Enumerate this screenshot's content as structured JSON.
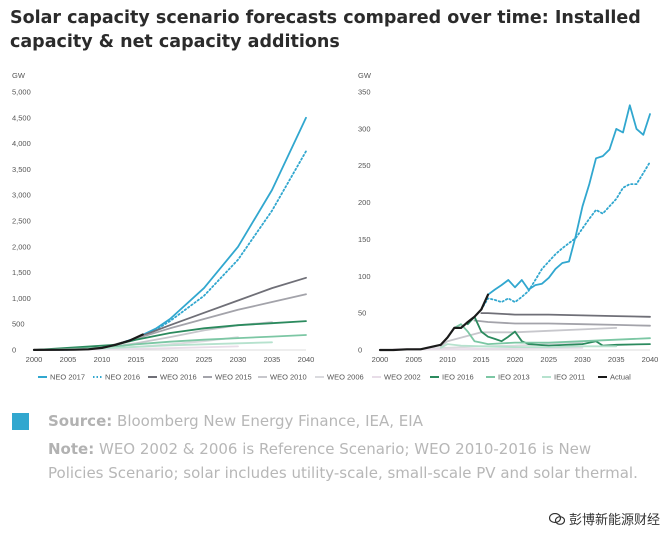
{
  "title": "Solar capacity scenario forecasts compared over time: Installed capacity & net capacity additions",
  "source_label": "Source:",
  "source_text": "Bloomberg New Energy Finance, IEA, EIA",
  "note_label": "Note:",
  "note_text": "WEO 2002 & 2006 is Reference Scenario; WEO 2010-2016 is New Policies Scenario; solar includes utility-scale, small-scale PV and solar thermal.",
  "watermark": "彭博新能源财经",
  "accent_color": "#31a7cf",
  "chart_data": [
    {
      "type": "line",
      "ylabel": "GW",
      "xlim": [
        2000,
        2040
      ],
      "ylim": [
        0,
        5000
      ],
      "xticks": [
        "2000",
        "2005",
        "2010",
        "2015",
        "2020",
        "2025",
        "2030",
        "2035",
        "2040"
      ],
      "yticks": [
        "0",
        "500",
        "1,000",
        "1,500",
        "2,000",
        "2,500",
        "3,000",
        "3,500",
        "4,000",
        "4,500",
        "5,000"
      ],
      "series": [
        {
          "name": "NEO 2017",
          "color": "#31a7cf",
          "dash": "solid",
          "x": [
            2000,
            2005,
            2010,
            2012,
            2015,
            2018,
            2020,
            2025,
            2030,
            2035,
            2040
          ],
          "values": [
            0,
            5,
            40,
            100,
            230,
            420,
            600,
            1200,
            2000,
            3100,
            4500
          ]
        },
        {
          "name": "NEO 2016",
          "color": "#31a7cf",
          "dash": "dotted",
          "x": [
            2000,
            2005,
            2010,
            2012,
            2015,
            2018,
            2020,
            2025,
            2030,
            2035,
            2040
          ],
          "values": [
            0,
            5,
            40,
            100,
            230,
            400,
            560,
            1050,
            1750,
            2700,
            3850
          ]
        },
        {
          "name": "WEO 2016",
          "color": "#6f6f77",
          "dash": "solid",
          "x": [
            2000,
            2010,
            2014,
            2020,
            2025,
            2030,
            2035,
            2040
          ],
          "values": [
            0,
            40,
            180,
            480,
            720,
            960,
            1200,
            1400
          ]
        },
        {
          "name": "WEO 2015",
          "color": "#a3a3aa",
          "dash": "solid",
          "x": [
            2000,
            2010,
            2014,
            2020,
            2025,
            2030,
            2035,
            2040
          ],
          "values": [
            0,
            40,
            180,
            420,
            600,
            780,
            930,
            1080
          ]
        },
        {
          "name": "WEO 2010",
          "color": "#c7c7cc",
          "dash": "solid",
          "x": [
            2000,
            2008,
            2010,
            2015,
            2020,
            2025,
            2030,
            2035
          ],
          "values": [
            0,
            15,
            40,
            130,
            250,
            380,
            480,
            540
          ]
        },
        {
          "name": "WEO 2006",
          "color": "#dadade",
          "dash": "solid",
          "x": [
            2000,
            2005,
            2010,
            2015,
            2020,
            2025,
            2030
          ],
          "values": [
            0,
            5,
            25,
            60,
            110,
            170,
            250
          ]
        },
        {
          "name": "WEO 2002",
          "color": "#e8dde8",
          "dash": "solid",
          "x": [
            2000,
            2010,
            2020,
            2030
          ],
          "values": [
            0,
            10,
            35,
            70
          ]
        },
        {
          "name": "IEO 2016",
          "color": "#2b8a5e",
          "dash": "solid",
          "x": [
            2000,
            2012,
            2015,
            2020,
            2025,
            2030,
            2035,
            2040
          ],
          "values": [
            0,
            100,
            200,
            330,
            420,
            480,
            520,
            560
          ]
        },
        {
          "name": "IEO 2013",
          "color": "#7cc7a4",
          "dash": "solid",
          "x": [
            2000,
            2010,
            2015,
            2020,
            2025,
            2030,
            2035,
            2040
          ],
          "values": [
            0,
            40,
            110,
            160,
            200,
            230,
            260,
            290
          ]
        },
        {
          "name": "IEO 2011",
          "color": "#b6e2ce",
          "dash": "solid",
          "x": [
            2000,
            2010,
            2015,
            2020,
            2025,
            2030,
            2035
          ],
          "values": [
            0,
            30,
            60,
            90,
            110,
            130,
            150
          ]
        },
        {
          "name": "Actual",
          "color": "#1a1a1a",
          "dash": "solid",
          "x": [
            2000,
            2004,
            2006,
            2008,
            2010,
            2012,
            2014,
            2016
          ],
          "values": [
            1,
            3,
            6,
            14,
            40,
            100,
            180,
            300
          ]
        }
      ]
    },
    {
      "type": "line",
      "ylabel": "GW",
      "xlim": [
        2000,
        2040
      ],
      "ylim": [
        0,
        350
      ],
      "xticks": [
        "2000",
        "2005",
        "2010",
        "2015",
        "2020",
        "2025",
        "2030",
        "2035",
        "2040"
      ],
      "yticks": [
        "0",
        "50",
        "100",
        "150",
        "200",
        "250",
        "300",
        "350"
      ],
      "series": [
        {
          "name": "NEO 2017",
          "color": "#31a7cf",
          "dash": "solid",
          "x": [
            2015,
            2016,
            2017,
            2018,
            2019,
            2020,
            2021,
            2022,
            2023,
            2024,
            2025,
            2026,
            2027,
            2028,
            2029,
            2030,
            2031,
            2032,
            2033,
            2034,
            2035,
            2036,
            2037,
            2038,
            2039,
            2040
          ],
          "values": [
            55,
            75,
            82,
            88,
            95,
            85,
            95,
            82,
            88,
            90,
            98,
            110,
            118,
            120,
            155,
            195,
            225,
            260,
            263,
            272,
            300,
            295,
            332,
            300,
            292,
            320
          ]
        },
        {
          "name": "NEO 2016",
          "color": "#31a7cf",
          "dash": "dotted",
          "x": [
            2015,
            2016,
            2017,
            2018,
            2019,
            2020,
            2021,
            2022,
            2023,
            2024,
            2025,
            2026,
            2027,
            2028,
            2029,
            2030,
            2031,
            2032,
            2033,
            2034,
            2035,
            2036,
            2037,
            2038,
            2039,
            2040
          ],
          "values": [
            55,
            70,
            68,
            65,
            70,
            65,
            72,
            80,
            95,
            110,
            120,
            130,
            138,
            145,
            152,
            165,
            178,
            190,
            185,
            195,
            205,
            220,
            225,
            225,
            240,
            255
          ]
        },
        {
          "name": "WEO 2016",
          "color": "#6f6f77",
          "dash": "solid",
          "x": [
            2015,
            2016,
            2020,
            2025,
            2030,
            2035,
            2040
          ],
          "values": [
            50,
            50,
            48,
            48,
            47,
            46,
            45
          ]
        },
        {
          "name": "WEO 2015",
          "color": "#a3a3aa",
          "dash": "solid",
          "x": [
            2014,
            2016,
            2020,
            2025,
            2030,
            2035,
            2040
          ],
          "values": [
            40,
            38,
            36,
            36,
            35,
            34,
            33
          ]
        },
        {
          "name": "WEO 2010",
          "color": "#c7c7cc",
          "dash": "solid",
          "x": [
            2009,
            2010,
            2015,
            2020,
            2025,
            2030,
            2035
          ],
          "values": [
            5,
            12,
            24,
            24,
            26,
            28,
            30
          ]
        },
        {
          "name": "WEO 2006",
          "color": "#dadade",
          "dash": "solid",
          "x": [
            2005,
            2010,
            2015,
            2020,
            2025,
            2030
          ],
          "values": [
            1,
            3,
            5,
            6,
            8,
            10
          ]
        },
        {
          "name": "WEO 2002",
          "color": "#e8dde8",
          "dash": "solid",
          "x": [
            2002,
            2010,
            2020,
            2030
          ],
          "values": [
            1,
            1,
            2,
            3
          ]
        },
        {
          "name": "IEO 2016",
          "color": "#2b8a5e",
          "dash": "solid",
          "x": [
            2013,
            2014,
            2015,
            2016,
            2017,
            2018,
            2019,
            2020,
            2021,
            2022,
            2025,
            2030,
            2032,
            2033,
            2035,
            2040
          ],
          "values": [
            35,
            45,
            25,
            18,
            15,
            12,
            18,
            25,
            12,
            8,
            6,
            8,
            12,
            6,
            7,
            8
          ]
        },
        {
          "name": "IEO 2013",
          "color": "#7cc7a4",
          "dash": "solid",
          "x": [
            2011,
            2012,
            2013,
            2014,
            2015,
            2016,
            2018,
            2020,
            2025,
            2030,
            2035,
            2040
          ],
          "values": [
            30,
            35,
            25,
            12,
            10,
            8,
            9,
            10,
            10,
            12,
            14,
            16
          ]
        },
        {
          "name": "IEO 2011",
          "color": "#b6e2ce",
          "dash": "solid",
          "x": [
            2009,
            2010,
            2012,
            2015,
            2020,
            2025,
            2030,
            2035
          ],
          "values": [
            3,
            8,
            6,
            5,
            4,
            4,
            5,
            5
          ]
        },
        {
          "name": "Actual",
          "color": "#1a1a1a",
          "dash": "solid",
          "x": [
            2000,
            2002,
            2004,
            2006,
            2008,
            2009,
            2010,
            2011,
            2012,
            2013,
            2014,
            2015,
            2016
          ],
          "values": [
            0,
            0,
            1,
            1,
            5,
            7,
            17,
            30,
            30,
            38,
            45,
            55,
            75
          ]
        }
      ]
    }
  ],
  "legend": [
    "NEO 2017",
    "NEO 2016",
    "WEO 2016",
    "WEO 2015",
    "WEO 2010",
    "WEO 2006",
    "WEO 2002",
    "IEO 2016",
    "IEO 2013",
    "IEO 2011",
    "Actual"
  ]
}
